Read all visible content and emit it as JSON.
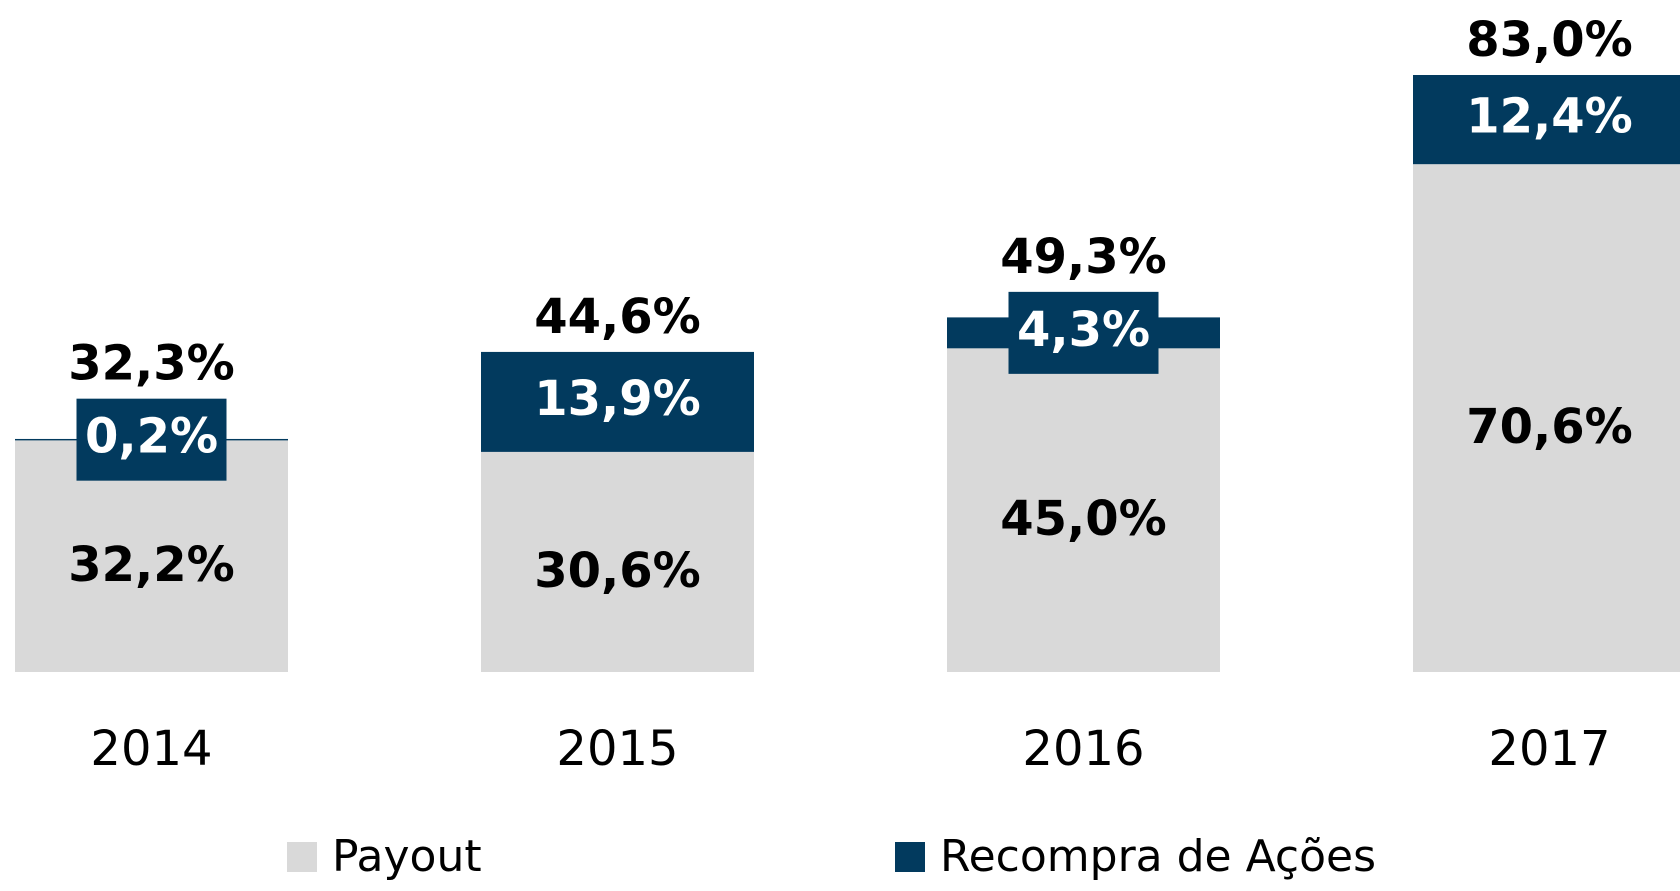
{
  "chart_data": {
    "type": "stacked-bar",
    "categories": [
      "2014",
      "2015",
      "2016",
      "2017"
    ],
    "series": [
      {
        "name": "Payout",
        "color": "#d9d9d9",
        "values": [
          32.2,
          30.6,
          45.0,
          70.6
        ],
        "value_labels": [
          "32,2%",
          "30,6%",
          "45,0%",
          "70,6%"
        ]
      },
      {
        "name": "Recompra de Ações",
        "color": "#023a5e",
        "values": [
          0.2,
          13.9,
          4.3,
          12.4
        ],
        "value_labels": [
          "0,2%",
          "13,9%",
          "4,3%",
          "12,4%"
        ]
      }
    ],
    "totals": [
      32.3,
      44.6,
      49.3,
      83.0
    ],
    "total_labels": [
      "32,3%",
      "44,6%",
      "49,3%",
      "83,0%"
    ]
  }
}
